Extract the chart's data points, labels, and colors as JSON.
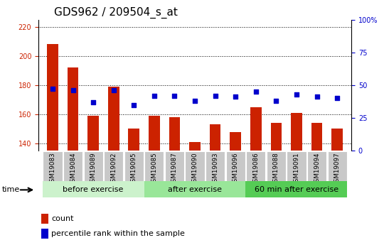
{
  "title": "GDS962 / 209504_s_at",
  "samples": [
    "GSM19083",
    "GSM19084",
    "GSM19089",
    "GSM19092",
    "GSM19095",
    "GSM19085",
    "GSM19087",
    "GSM19090",
    "GSM19093",
    "GSM19096",
    "GSM19086",
    "GSM19088",
    "GSM19091",
    "GSM19094",
    "GSM19097"
  ],
  "counts": [
    208,
    192,
    159,
    179,
    150,
    159,
    158,
    141,
    153,
    148,
    165,
    154,
    161,
    154,
    150
  ],
  "percentile_ranks": [
    47,
    46,
    37,
    46,
    35,
    42,
    42,
    38,
    42,
    41,
    45,
    38,
    43,
    41,
    40
  ],
  "ylim_left": [
    135,
    225
  ],
  "ylim_right": [
    0,
    100
  ],
  "yticks_left": [
    140,
    160,
    180,
    200,
    220
  ],
  "yticks_right": [
    0,
    25,
    50,
    75,
    100
  ],
  "yticklabels_right": [
    "0",
    "25",
    "50",
    "75",
    "100%"
  ],
  "groups": [
    {
      "label": "before exercise",
      "start": 0,
      "end": 5,
      "color": "#ccf2cc"
    },
    {
      "label": "after exercise",
      "start": 5,
      "end": 10,
      "color": "#99e699"
    },
    {
      "label": "60 min after exercise",
      "start": 10,
      "end": 15,
      "color": "#55cc55"
    }
  ],
  "bar_color": "#cc2200",
  "dot_color": "#0000cc",
  "bar_width": 0.55,
  "grid_color": "#000000",
  "baseline": 135,
  "background_xtick": "#c8c8c8",
  "tick_color_left": "#cc2200",
  "tick_color_right": "#0000cc",
  "tick_fontsize": 7,
  "title_fontsize": 11,
  "group_label_fontsize": 8,
  "legend_count_color": "#cc2200",
  "legend_dot_color": "#0000cc"
}
